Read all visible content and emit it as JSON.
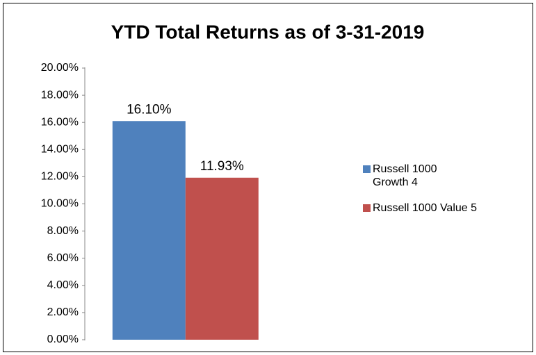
{
  "chart_data": {
    "type": "bar",
    "title": "YTD Total Returns as of 3-31-2019",
    "categories": [
      null
    ],
    "series": [
      {
        "name": "Russell 1000 Growth 4",
        "color": "#4f81bd",
        "values": [
          16.1
        ],
        "value_labels": [
          "16.10%"
        ]
      },
      {
        "name": "Russell 1000 Value 5",
        "color": "#c0504d",
        "values": [
          11.93
        ],
        "value_labels": [
          "11.93%"
        ]
      }
    ],
    "ylim": [
      0,
      20
    ],
    "yticks": [
      {
        "value": 0,
        "label": "0.00%"
      },
      {
        "value": 2,
        "label": "2.00%"
      },
      {
        "value": 4,
        "label": "4.00%"
      },
      {
        "value": 6,
        "label": "6.00%"
      },
      {
        "value": 8,
        "label": "8.00%"
      },
      {
        "value": 10,
        "label": "10.00%"
      },
      {
        "value": 12,
        "label": "12.00%"
      },
      {
        "value": 14,
        "label": "14.00%"
      },
      {
        "value": 16,
        "label": "16.00%"
      },
      {
        "value": 18,
        "label": "18.00%"
      },
      {
        "value": 20,
        "label": "20.00%"
      }
    ],
    "grid": false,
    "legend": "right"
  }
}
